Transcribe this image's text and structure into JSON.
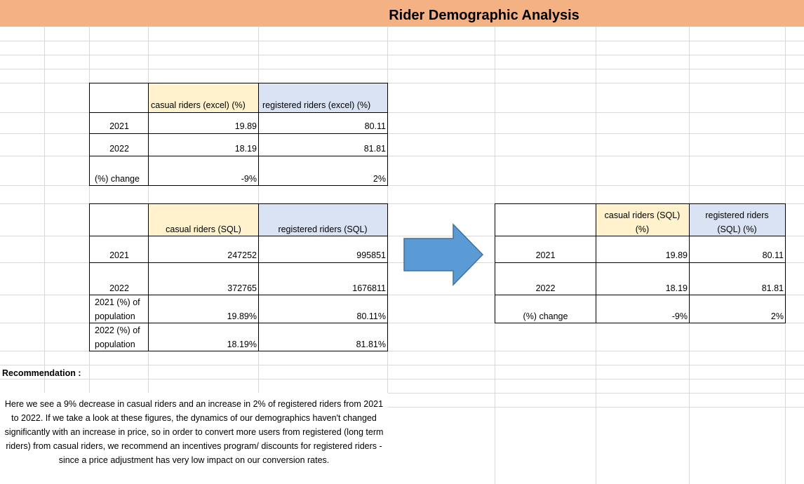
{
  "title": "Rider Demographic Analysis",
  "table_excel": {
    "header_casual": "casual riders (excel) (%)",
    "header_registered": "registered riders (excel) (%)",
    "rows": [
      {
        "label": "2021",
        "casual": "19.89",
        "registered": "80.11"
      },
      {
        "label": "2022",
        "casual": "18.19",
        "registered": "81.81"
      },
      {
        "label": "(%) change",
        "casual": "-9%",
        "registered": "2%"
      }
    ]
  },
  "table_sql": {
    "header_casual": "casual riders (SQL)",
    "header_registered": "registered riders (SQL)",
    "rows": [
      {
        "label": "2021",
        "casual": "247252",
        "registered": "995851"
      },
      {
        "label": "2022",
        "casual": "372765",
        "registered": "1676811"
      },
      {
        "label_line1": "2021 (%) of",
        "label_line2": "population",
        "casual": "19.89%",
        "registered": "80.11%"
      },
      {
        "label_line1": "2022 (%) of",
        "label_line2": "population",
        "casual": "18.19%",
        "registered": "81.81%"
      }
    ]
  },
  "table_sql_pct": {
    "header_casual_line1": "casual riders (SQL)",
    "header_casual_line2": "(%)",
    "header_registered_line1": "registered riders",
    "header_registered_line2": "(SQL) (%)",
    "rows": [
      {
        "label": "2021",
        "casual": "19.89",
        "registered": "80.11"
      },
      {
        "label": "2022",
        "casual": "18.19",
        "registered": "81.81"
      },
      {
        "label": "(%) change",
        "casual": "-9%",
        "registered": "2%"
      }
    ]
  },
  "recommendation": {
    "label": "Recommendation :",
    "text": "Here we see a 9% decrease in casual riders and an increase in 2% of registered riders from 2021 to 2022. If we take a look at these figures, the dynamics of our demographics haven't changed significantly with an increase in price, so in order to convert more users from registered (long term riders) from casual riders, we recommend an incentives program/ discounts for registered riders - since a price adjustment has very low impact on our conversion rates."
  },
  "colors": {
    "banner": "#f4b183",
    "casual_header": "#fff2cc",
    "registered_header": "#dae3f3",
    "arrow": "#5b9bd5",
    "arrow_border": "#41719c"
  },
  "icons": {
    "arrow": "right-arrow-icon"
  }
}
